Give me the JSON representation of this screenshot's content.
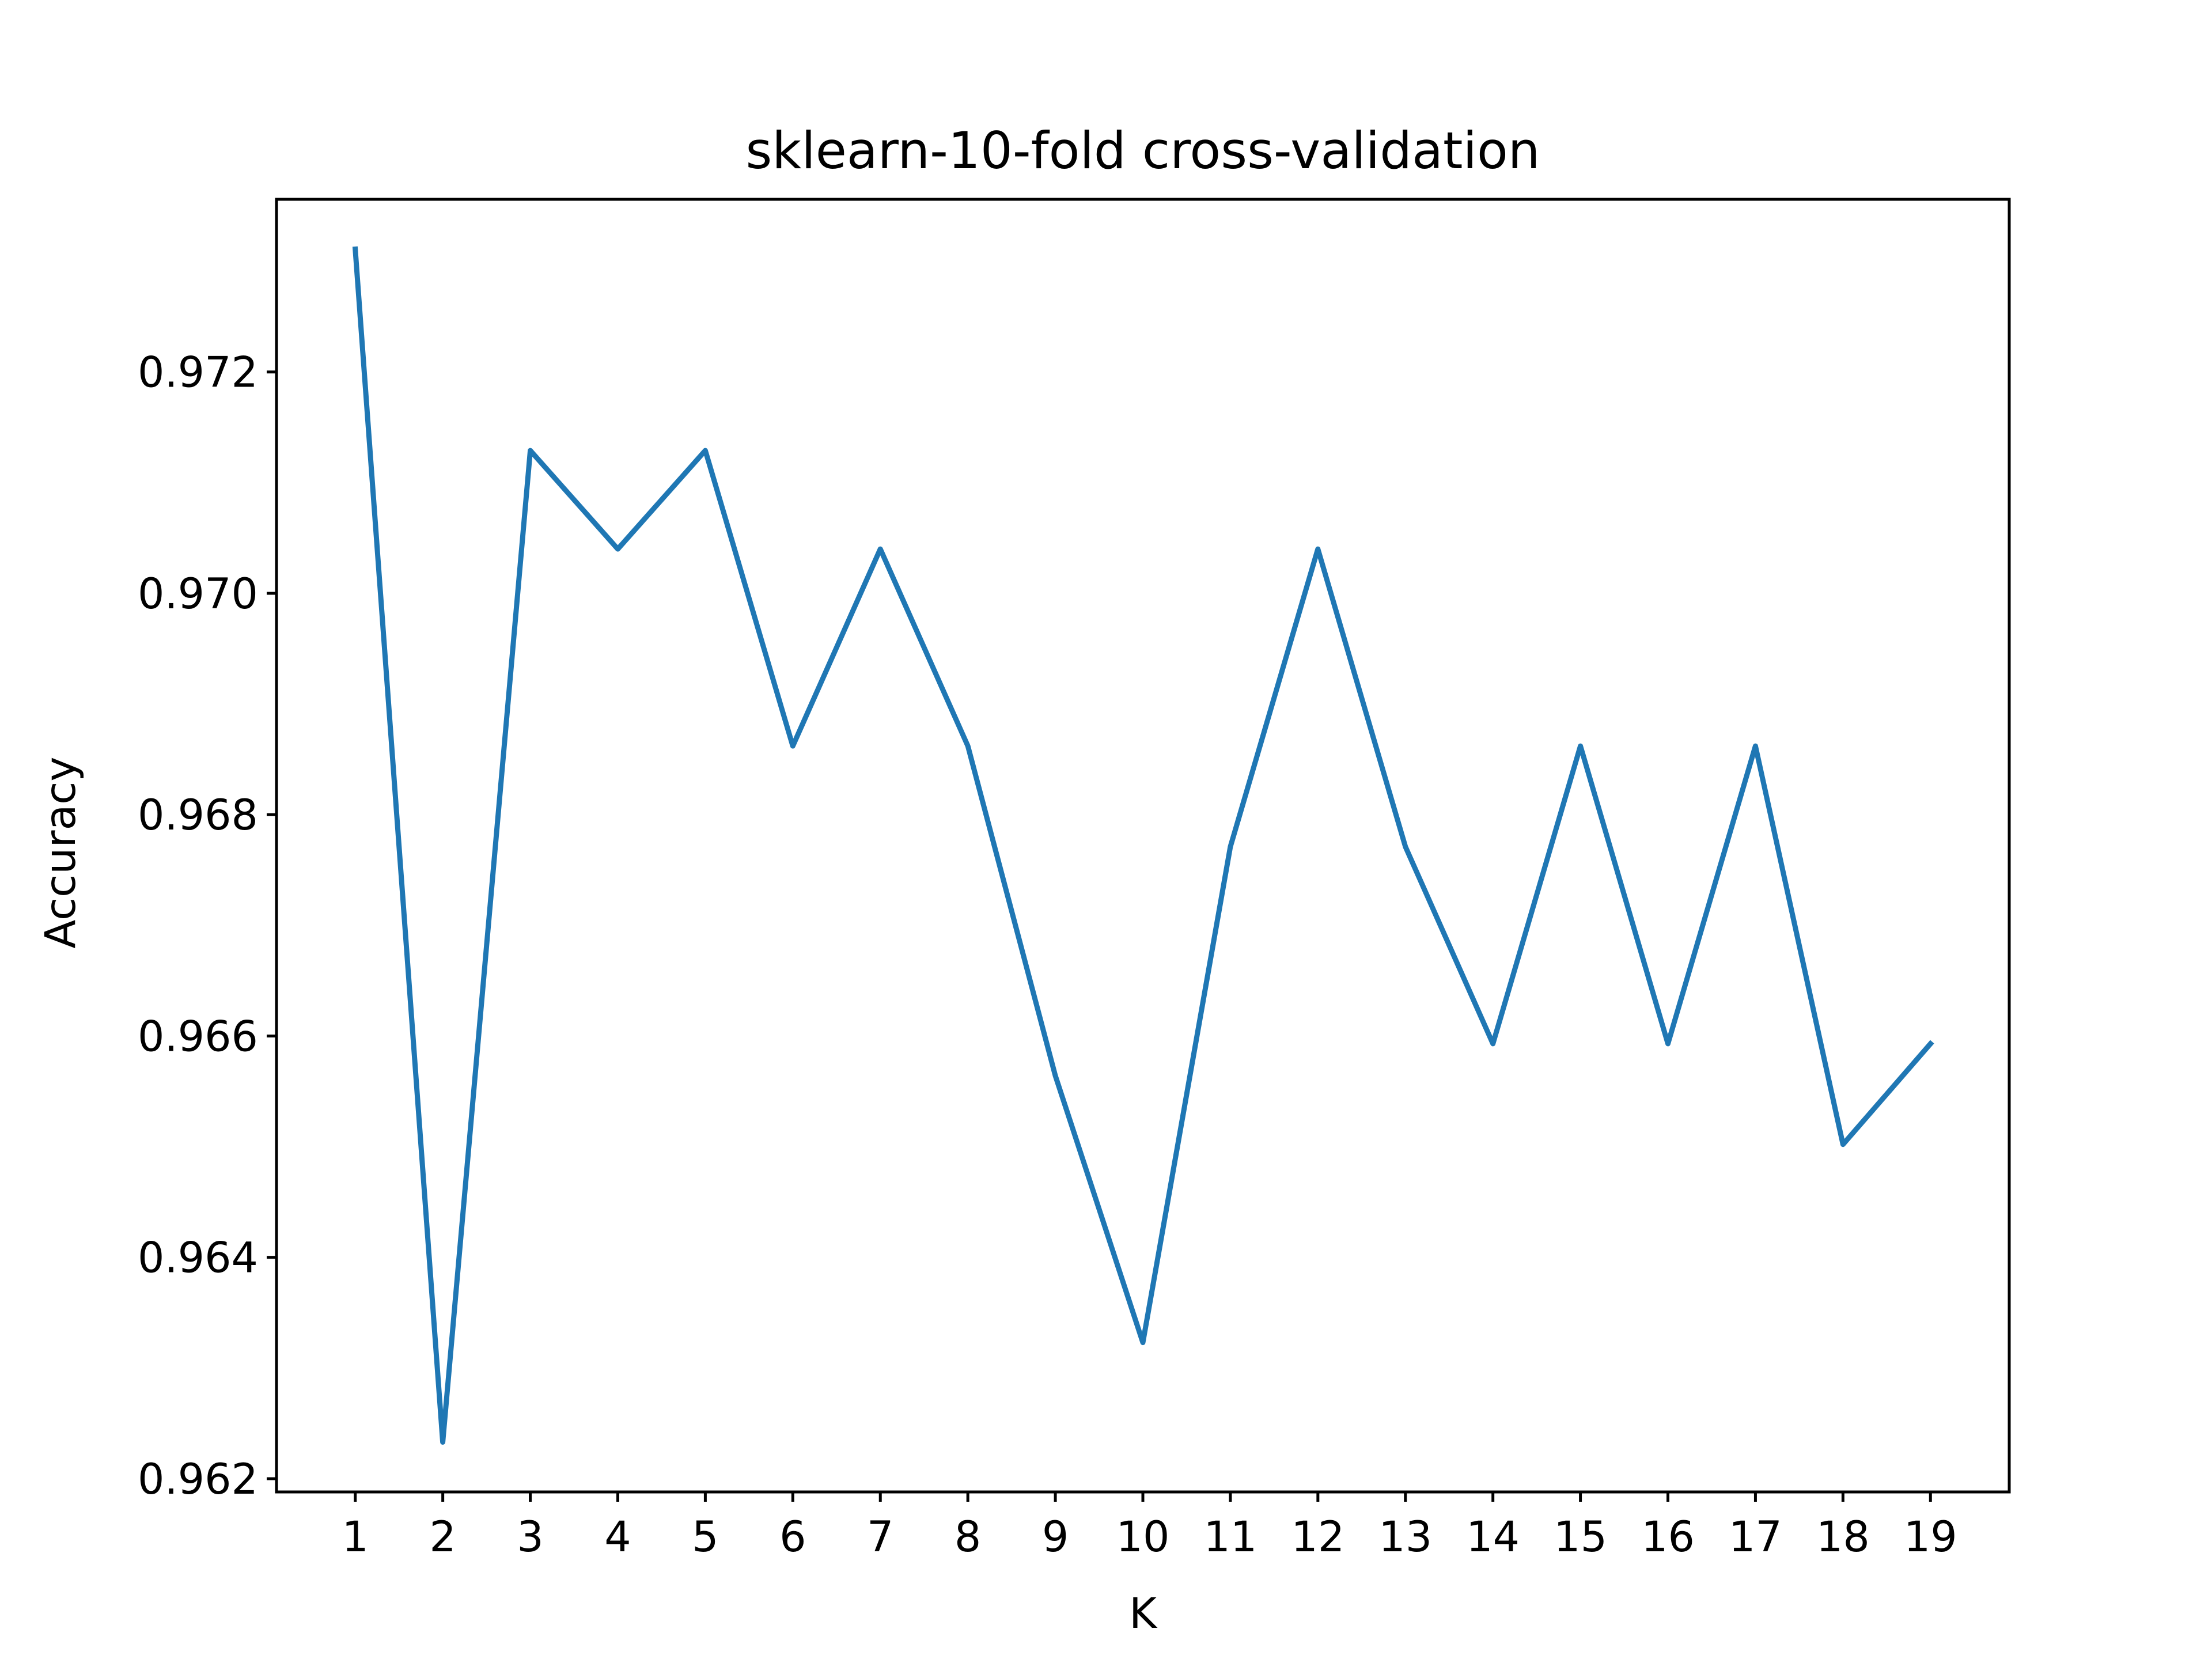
{
  "chart_data": {
    "type": "line",
    "title": "sklearn-10-fold cross-validation",
    "xlabel": "K",
    "ylabel": "Accuracy",
    "x": [
      1,
      2,
      3,
      4,
      5,
      6,
      7,
      8,
      9,
      10,
      11,
      12,
      13,
      14,
      15,
      16,
      17,
      18,
      19
    ],
    "series": [
      {
        "values": [
          0.97311,
          0.96233,
          0.97129,
          0.9704,
          0.97129,
          0.96862,
          0.9704,
          0.96862,
          0.96564,
          0.96323,
          0.96771,
          0.9704,
          0.96771,
          0.96593,
          0.96862,
          0.96593,
          0.96862,
          0.96502,
          0.96593
        ],
        "color": "#1f77b4"
      }
    ],
    "xticks": [
      "1",
      "2",
      "3",
      "4",
      "5",
      "6",
      "7",
      "8",
      "9",
      "10",
      "11",
      "12",
      "13",
      "14",
      "15",
      "16",
      "17",
      "18",
      "19"
    ],
    "yticks": [
      "0.962",
      "0.964",
      "0.966",
      "0.968",
      "0.970",
      "0.972"
    ],
    "xlim": [
      0.1,
      19.9
    ],
    "ylim": [
      0.96188,
      0.97356
    ],
    "grid": false,
    "legend": "none"
  }
}
